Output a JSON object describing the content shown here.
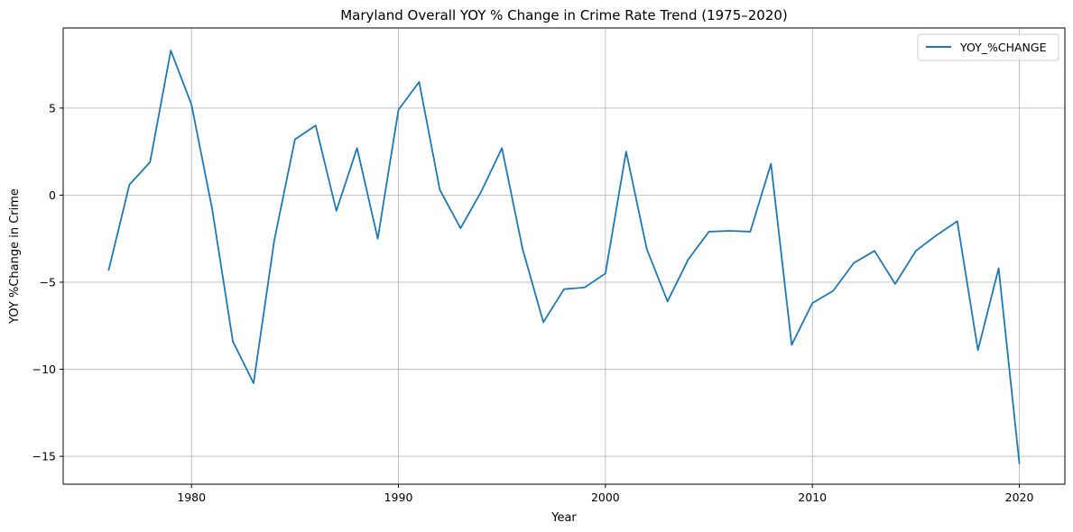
{
  "chart_data": {
    "type": "line",
    "title": "Maryland Overall YOY % Change in Crime Rate Trend (1975–2020)",
    "xlabel": "Year",
    "ylabel": "YOY %Change in Crime",
    "xlim": [
      1973.8,
      2022.2
    ],
    "ylim": [
      -16.6,
      9.6
    ],
    "xticks": [
      1980,
      1990,
      2000,
      2010,
      2020
    ],
    "yticks": [
      -15,
      -10,
      -5,
      0,
      5
    ],
    "ytick_labels": [
      "−15",
      "−10",
      "−5",
      "0",
      "5"
    ],
    "grid": true,
    "legend_position": "top-right",
    "color": "#1f77b4",
    "series": [
      {
        "name": "YOY_%CHANGE",
        "x": [
          1976,
          1977,
          1978,
          1979,
          1980,
          1981,
          1982,
          1983,
          1984,
          1985,
          1986,
          1987,
          1988,
          1989,
          1990,
          1991,
          1992,
          1993,
          1994,
          1995,
          1996,
          1997,
          1998,
          1999,
          2000,
          2001,
          2002,
          2003,
          2004,
          2005,
          2006,
          2007,
          2008,
          2009,
          2010,
          2011,
          2012,
          2013,
          2014,
          2015,
          2016,
          2017,
          2018,
          2019,
          2020
        ],
        "values": [
          -4.3,
          0.6,
          1.9,
          8.3,
          5.2,
          -0.8,
          -8.4,
          -10.8,
          -2.6,
          3.2,
          4.0,
          -0.9,
          2.7,
          -2.5,
          4.9,
          6.5,
          0.3,
          -1.9,
          0.2,
          2.7,
          -3.1,
          -7.3,
          -5.4,
          -5.3,
          -4.5,
          2.5,
          -3.1,
          -6.1,
          -3.7,
          -2.1,
          -2.05,
          -2.1,
          1.8,
          -8.6,
          -6.2,
          -5.5,
          -3.9,
          -3.2,
          -5.1,
          -3.2,
          -2.3,
          -1.5,
          -8.9,
          -4.2,
          -15.4
        ]
      }
    ]
  }
}
